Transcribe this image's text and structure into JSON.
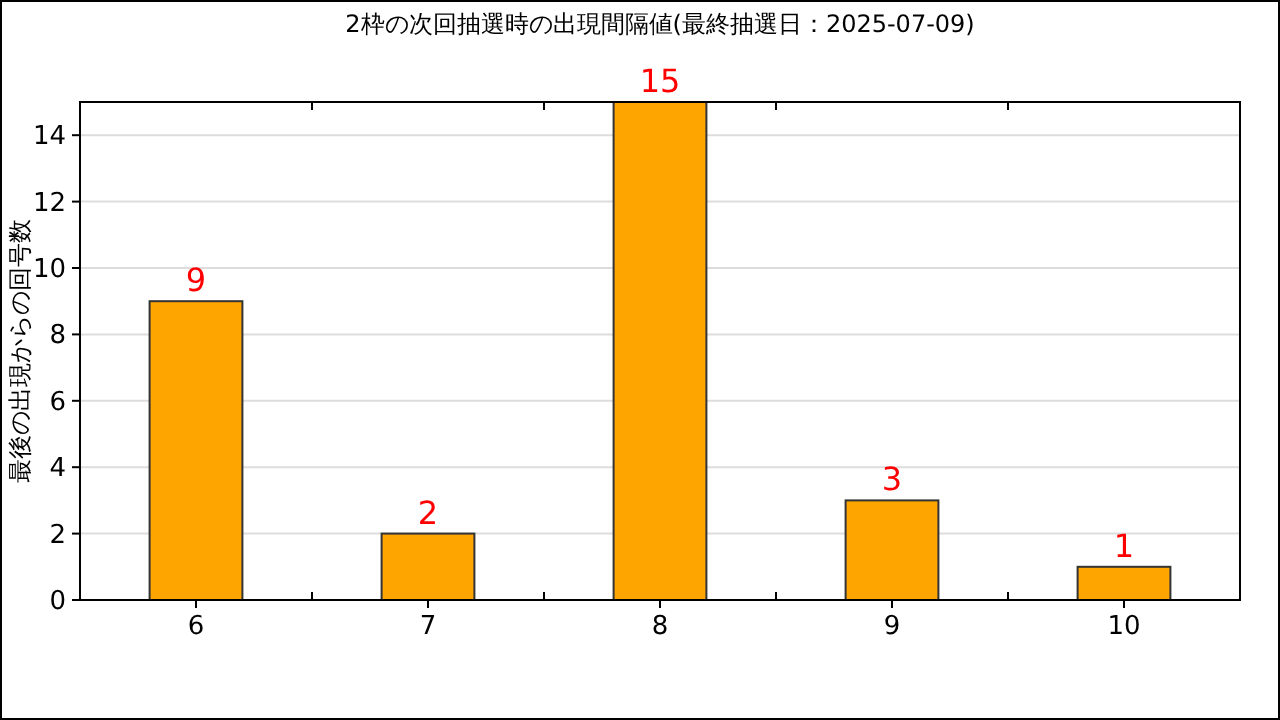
{
  "chart_data": {
    "type": "bar",
    "title": "2枠の次回抽選時の出現間隔値(最終抽選日：2025-07-09)",
    "ylabel": "最後の出現からの回号数",
    "categories": [
      "6",
      "7",
      "8",
      "9",
      "10"
    ],
    "values": [
      9,
      2,
      15,
      3,
      1
    ],
    "color": "#ffa500",
    "ylim": [
      0,
      15
    ],
    "yticks": [
      0,
      2,
      4,
      6,
      8,
      10,
      12,
      14
    ],
    "grid": "y",
    "data_labels": true
  }
}
